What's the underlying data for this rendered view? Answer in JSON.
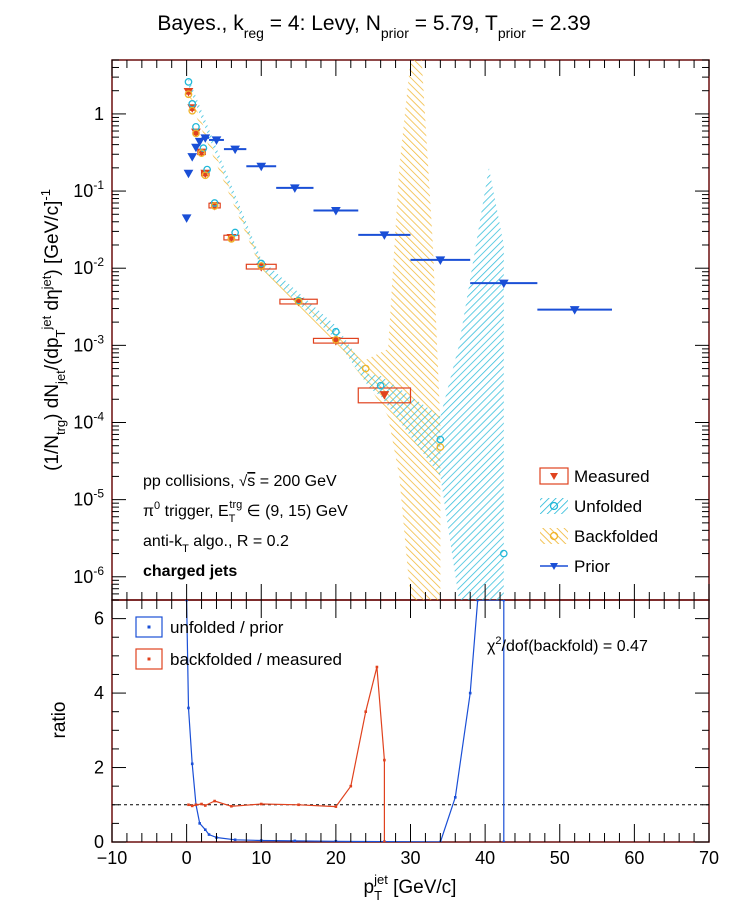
{
  "figure": {
    "title_parts": {
      "prefix": "Bayes., k",
      "sub_reg": "reg",
      "mid1": " = 4: Levy, N",
      "sub_prior1": "prior",
      "mid2": " = 5.79, T",
      "sub_prior2": "prior",
      "suffix": " = 2.39"
    },
    "ylabel_top": "(1/N_trg) dN_jet/(dp_T^jet dη^jet) [GeV/c]^-1",
    "ylabel_bottom": "ratio",
    "xlabel": "p_T^jet [GeV/c]",
    "annotations": {
      "line1": "pp collisions, √s = 200 GeV",
      "line2": "π⁰ trigger, E_T^trg ∈ (9, 15) GeV",
      "line3": "anti-k_T algo., R = 0.2",
      "line4": "charged jets"
    },
    "chi2_text": "χ²/dof(backfold) = 0.47",
    "colors": {
      "measured": "#e0421e",
      "unfolded": "#22b8d8",
      "backfolded": "#f0b42a",
      "prior": "#1a4fd6",
      "ratio_unfolded": "#1a4fd6",
      "ratio_backfolded": "#e0421e",
      "frame": "#6b0f0f"
    }
  },
  "chart_data": [
    {
      "type": "scatter",
      "panel": "top",
      "xlim": [
        -10,
        70
      ],
      "ylim": [
        5e-07,
        5
      ],
      "yscale": "log",
      "xticks": [
        -10,
        0,
        10,
        20,
        30,
        40,
        50,
        60,
        70
      ],
      "ytick_labels": [
        "10^-6",
        "10^-5",
        "10^-4",
        "10^-3",
        "10^-2",
        "10^-1",
        "1"
      ],
      "legend": {
        "placement": "bottom-right",
        "entries": [
          "Measured",
          "Unfolded",
          "Backfolded",
          "Prior"
        ]
      },
      "series": [
        {
          "name": "Measured",
          "points": [
            {
              "x": 0.25,
              "y": 1.95,
              "xerr": 0.25
            },
            {
              "x": 0.75,
              "y": 1.2,
              "xerr": 0.25
            },
            {
              "x": 1.25,
              "y": 0.58,
              "xerr": 0.25
            },
            {
              "x": 2.0,
              "y": 0.32,
              "xerr": 0.5
            },
            {
              "x": 2.5,
              "y": 0.17,
              "xerr": 0.5
            },
            {
              "x": 3.75,
              "y": 0.065,
              "xerr": 0.75
            },
            {
              "x": 6.0,
              "y": 0.025,
              "xerr": 1.0
            },
            {
              "x": 10.0,
              "y": 0.0105,
              "xerr": 2.0
            },
            {
              "x": 15.0,
              "y": 0.0037,
              "xerr": 2.5
            },
            {
              "x": 20.0,
              "y": 0.00115,
              "xerr": 3.0
            },
            {
              "x": 26.5,
              "y": 0.00023,
              "xerr": 3.5,
              "yerr_lo": 5e-05,
              "yerr_hi": 5e-05
            }
          ]
        },
        {
          "name": "Unfolded",
          "points": [
            {
              "x": 0.25,
              "y": 2.6
            },
            {
              "x": 0.75,
              "y": 1.35
            },
            {
              "x": 1.25,
              "y": 0.68
            },
            {
              "x": 2.25,
              "y": 0.36
            },
            {
              "x": 2.75,
              "y": 0.19
            },
            {
              "x": 3.75,
              "y": 0.07
            },
            {
              "x": 6.5,
              "y": 0.029
            },
            {
              "x": 10.0,
              "y": 0.0115
            },
            {
              "x": 15.0,
              "y": 0.0038
            },
            {
              "x": 20.0,
              "y": 0.0015
            },
            {
              "x": 26.0,
              "y": 0.0003
            },
            {
              "x": 34.0,
              "y": 6e-05
            },
            {
              "x": 42.5,
              "y": 2e-06
            }
          ],
          "band": [
            {
              "x": 0.25,
              "lo": 2.3,
              "hi": 2.9
            },
            {
              "x": 10.0,
              "lo": 0.01,
              "hi": 0.013
            },
            {
              "x": 20.0,
              "lo": 0.0012,
              "hi": 0.0018
            },
            {
              "x": 24.5,
              "lo": 0.00028,
              "hi": 0.00042
            },
            {
              "x": 26.0,
              "lo": 0.00022,
              "hi": 0.0004
            },
            {
              "x": 34.0,
              "lo": 2e-05,
              "hi": 0.00012
            },
            {
              "x": 36.5,
              "lo": 5e-07,
              "hi": 0.001
            },
            {
              "x": 40.5,
              "lo": 5e-07,
              "hi": 0.2
            },
            {
              "x": 42.5,
              "lo": 5e-07,
              "hi": 0.02
            }
          ]
        },
        {
          "name": "Backfolded",
          "points": [
            {
              "x": 0.25,
              "y": 1.8
            },
            {
              "x": 0.75,
              "y": 1.1
            },
            {
              "x": 1.25,
              "y": 0.56
            },
            {
              "x": 2.0,
              "y": 0.31
            },
            {
              "x": 2.5,
              "y": 0.16
            },
            {
              "x": 3.75,
              "y": 0.064
            },
            {
              "x": 6.0,
              "y": 0.024
            },
            {
              "x": 10.0,
              "y": 0.0107
            },
            {
              "x": 15.0,
              "y": 0.0037
            },
            {
              "x": 20.0,
              "y": 0.00118
            },
            {
              "x": 24.0,
              "y": 0.0005
            },
            {
              "x": 34.0,
              "y": 4.8e-05
            }
          ],
          "band": [
            {
              "x": 0.25,
              "lo": 1.6,
              "hi": 2.0
            },
            {
              "x": 10.0,
              "lo": 0.0095,
              "hi": 0.012
            },
            {
              "x": 20.0,
              "lo": 0.00098,
              "hi": 0.0014
            },
            {
              "x": 24.0,
              "lo": 0.00035,
              "hi": 0.00065
            },
            {
              "x": 27.0,
              "lo": 0.00012,
              "hi": 0.0009
            },
            {
              "x": 28.5,
              "lo": 2e-05,
              "hi": 0.2
            },
            {
              "x": 30.0,
              "lo": 5e-07,
              "hi": 5
            },
            {
              "x": 31.5,
              "lo": 5e-07,
              "hi": 5
            },
            {
              "x": 33.0,
              "lo": 5e-07,
              "hi": 0.02
            },
            {
              "x": 34.0,
              "lo": 5e-07,
              "hi": 9e-05
            }
          ]
        },
        {
          "name": "Prior",
          "points": [
            {
              "x": 0.0,
              "y": 0.045
            },
            {
              "x": 0.25,
              "y": 0.17
            },
            {
              "x": 0.75,
              "y": 0.28
            },
            {
              "x": 1.25,
              "y": 0.37
            },
            {
              "x": 1.75,
              "y": 0.44
            },
            {
              "x": 2.5,
              "y": 0.49,
              "xerr": 0.5
            },
            {
              "x": 4.0,
              "y": 0.46,
              "xerr": 1.0
            },
            {
              "x": 6.5,
              "y": 0.35,
              "xerr": 1.5
            },
            {
              "x": 10.0,
              "y": 0.21,
              "xerr": 2.0
            },
            {
              "x": 14.5,
              "y": 0.11,
              "xerr": 2.5
            },
            {
              "x": 20.0,
              "y": 0.056,
              "xerr": 3.0
            },
            {
              "x": 26.5,
              "y": 0.027,
              "xerr": 3.5
            },
            {
              "x": 34.0,
              "y": 0.0128,
              "xerr": 4.0
            },
            {
              "x": 42.5,
              "y": 0.0064,
              "xerr": 4.5
            },
            {
              "x": 52.0,
              "y": 0.0029,
              "xerr": 5.0
            }
          ]
        }
      ]
    },
    {
      "type": "line",
      "panel": "bottom",
      "xlim": [
        -10,
        70
      ],
      "ylim": [
        0,
        6.5
      ],
      "yticks": [
        0,
        2,
        4,
        6
      ],
      "xticks": [
        -10,
        0,
        10,
        20,
        30,
        40,
        50,
        60,
        70
      ],
      "reference_line": 1,
      "legend": {
        "placement": "top-left",
        "entries": [
          "unfolded / prior",
          "backfolded / measured"
        ]
      },
      "series": [
        {
          "name": "unfolded / prior",
          "x": [
            0.0,
            0.25,
            0.75,
            1.25,
            1.75,
            2.5,
            3.0,
            4.0,
            6.5,
            10.0,
            14.5,
            20.0,
            26.5,
            34.0,
            36.0,
            38.0,
            39.0,
            42.5,
            42.5
          ],
          "y": [
            6.5,
            3.6,
            2.1,
            1.0,
            0.5,
            0.33,
            0.2,
            0.12,
            0.06,
            0.04,
            0.03,
            0.02,
            0.01,
            0.0,
            1.2,
            4.0,
            6.5,
            6.5,
            0.0
          ]
        },
        {
          "name": "backfolded / measured",
          "x": [
            0.25,
            0.75,
            1.25,
            2.0,
            2.5,
            3.75,
            6.0,
            10.0,
            15.0,
            20.0,
            22.0,
            24.0,
            25.5,
            26.5,
            26.5
          ],
          "y": [
            1.0,
            0.97,
            1.0,
            1.02,
            0.98,
            1.1,
            0.96,
            1.02,
            1.0,
            0.95,
            1.5,
            3.5,
            4.7,
            2.2,
            0.0
          ]
        }
      ]
    }
  ]
}
